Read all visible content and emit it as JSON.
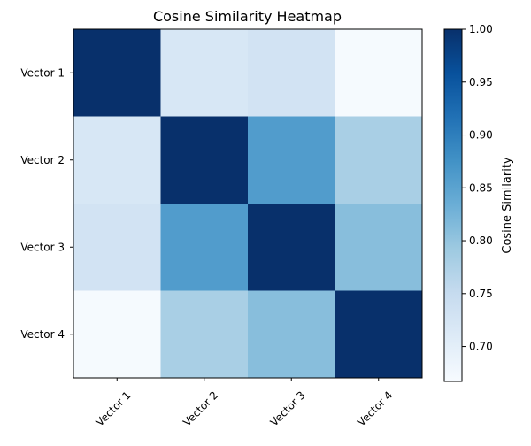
{
  "chart_data": {
    "type": "heatmap",
    "title": "Cosine Similarity Heatmap",
    "xlabel": "",
    "ylabel": "",
    "x_categories": [
      "Vector 1",
      "Vector 2",
      "Vector 3",
      "Vector 4"
    ],
    "y_categories": [
      "Vector 1",
      "Vector 2",
      "Vector 3",
      "Vector 4"
    ],
    "values": [
      [
        1.0,
        0.72,
        0.73,
        0.67
      ],
      [
        0.72,
        1.0,
        0.86,
        0.78
      ],
      [
        0.73,
        0.86,
        1.0,
        0.81
      ],
      [
        0.67,
        0.78,
        0.81,
        1.0
      ]
    ],
    "colormap": "Blues",
    "colorbar": {
      "label": "Cosine Similarity",
      "min": 0.667,
      "max": 1.0,
      "ticks": [
        0.7,
        0.75,
        0.8,
        0.85,
        0.9,
        0.95,
        1.0
      ],
      "tick_labels": [
        "0.70",
        "0.75",
        "0.80",
        "0.85",
        "0.90",
        "0.95",
        "1.00"
      ]
    },
    "grid": false,
    "x_tick_rotation_deg": 45
  }
}
